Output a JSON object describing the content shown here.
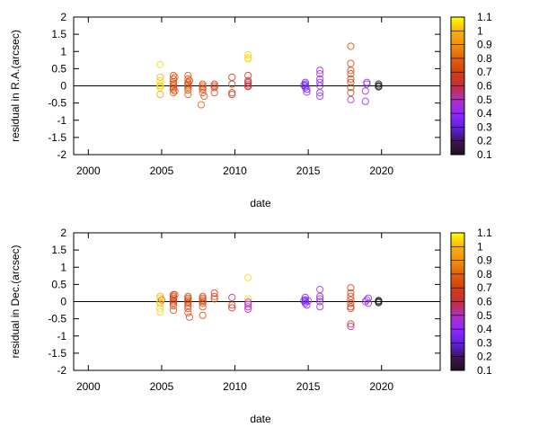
{
  "chart_data": [
    {
      "type": "scatter",
      "xlabel": "date",
      "ylabel": "residual in R.A.(arcsec)",
      "xlim": [
        1999,
        2024
      ],
      "ylim": [
        -2,
        2
      ],
      "xticks": [
        2000,
        2005,
        2010,
        2015,
        2020
      ],
      "yticks": [
        -2,
        -1.5,
        -1,
        -0.5,
        0,
        0.5,
        1,
        1.5,
        2
      ],
      "colorbar": {
        "range": [
          0.1,
          1.1
        ],
        "ticks": [
          "0.1",
          "0.2",
          "0.3",
          "0.4",
          "0.5",
          "0.6",
          "0.7",
          "0.8",
          "0.9",
          "1",
          "1.1"
        ]
      },
      "points_format": [
        "year",
        "residual",
        "color_value"
      ],
      "points": [
        [
          2004.9,
          0.62,
          1.05
        ],
        [
          2004.9,
          0.25,
          1.0
        ],
        [
          2004.9,
          0.15,
          1.05
        ],
        [
          2004.9,
          0.05,
          1.1
        ],
        [
          2004.9,
          0.0,
          1.0
        ],
        [
          2004.9,
          -0.05,
          1.05
        ],
        [
          2004.9,
          -0.25,
          0.95
        ],
        [
          2005.8,
          0.3,
          0.78
        ],
        [
          2005.8,
          0.2,
          0.75
        ],
        [
          2005.8,
          0.12,
          0.75
        ],
        [
          2005.8,
          0.05,
          0.75
        ],
        [
          2005.8,
          0.0,
          0.75
        ],
        [
          2005.8,
          -0.05,
          0.75
        ],
        [
          2005.8,
          -0.1,
          0.75
        ],
        [
          2005.8,
          -0.2,
          0.78
        ],
        [
          2005.9,
          0.25,
          0.8
        ],
        [
          2005.9,
          -0.15,
          0.75
        ],
        [
          2006.8,
          0.3,
          0.78
        ],
        [
          2006.8,
          0.2,
          0.75
        ],
        [
          2006.8,
          0.1,
          0.75
        ],
        [
          2006.8,
          0.05,
          0.75
        ],
        [
          2006.8,
          0.0,
          0.75
        ],
        [
          2006.8,
          -0.05,
          0.75
        ],
        [
          2006.8,
          -0.12,
          0.75
        ],
        [
          2006.8,
          -0.25,
          0.78
        ],
        [
          2006.9,
          0.15,
          0.75
        ],
        [
          2007.8,
          0.05,
          0.75
        ],
        [
          2007.8,
          0.0,
          0.75
        ],
        [
          2007.8,
          -0.05,
          0.75
        ],
        [
          2007.8,
          -0.1,
          0.75
        ],
        [
          2007.8,
          -0.2,
          0.78
        ],
        [
          2007.9,
          -0.3,
          0.78
        ],
        [
          2007.7,
          -0.55,
          0.78
        ],
        [
          2008.6,
          0.05,
          0.72
        ],
        [
          2008.6,
          0.0,
          0.7
        ],
        [
          2008.6,
          -0.05,
          0.72
        ],
        [
          2008.6,
          -0.2,
          0.72
        ],
        [
          2009.8,
          0.25,
          0.68
        ],
        [
          2009.8,
          0.05,
          0.68
        ],
        [
          2009.8,
          -0.2,
          0.68
        ],
        [
          2009.8,
          -0.25,
          0.68
        ],
        [
          2010.9,
          0.3,
          0.65
        ],
        [
          2010.9,
          0.15,
          0.6
        ],
        [
          2010.9,
          0.1,
          0.6
        ],
        [
          2010.9,
          0.05,
          0.6
        ],
        [
          2010.9,
          0.0,
          0.6
        ],
        [
          2010.9,
          -0.02,
          0.62
        ],
        [
          2010.9,
          0.9,
          1.05
        ],
        [
          2010.9,
          0.82,
          1.05
        ],
        [
          2010.9,
          0.78,
          1.05
        ],
        [
          2014.8,
          0.1,
          0.35
        ],
        [
          2014.8,
          0.05,
          0.35
        ],
        [
          2014.8,
          0.0,
          0.35
        ],
        [
          2014.8,
          -0.05,
          0.35
        ],
        [
          2014.9,
          -0.1,
          0.35
        ],
        [
          2014.9,
          -0.18,
          0.38
        ],
        [
          2014.7,
          0.02,
          0.35
        ],
        [
          2015.8,
          0.45,
          0.42
        ],
        [
          2015.8,
          0.35,
          0.42
        ],
        [
          2015.8,
          0.2,
          0.42
        ],
        [
          2015.8,
          0.1,
          0.42
        ],
        [
          2015.8,
          0.0,
          0.42
        ],
        [
          2015.8,
          -0.2,
          0.42
        ],
        [
          2015.8,
          -0.3,
          0.42
        ],
        [
          2017.9,
          1.15,
          0.72
        ],
        [
          2017.9,
          0.65,
          0.72
        ],
        [
          2017.9,
          0.45,
          0.72
        ],
        [
          2017.9,
          0.35,
          0.7
        ],
        [
          2017.9,
          0.2,
          0.7
        ],
        [
          2017.9,
          0.1,
          0.68
        ],
        [
          2017.9,
          -0.05,
          0.7
        ],
        [
          2017.9,
          -0.2,
          0.7
        ],
        [
          2017.9,
          -0.4,
          0.5
        ],
        [
          2019.0,
          0.1,
          0.42
        ],
        [
          2019.0,
          0.05,
          0.42
        ],
        [
          2018.9,
          -0.15,
          0.42
        ],
        [
          2018.9,
          -0.45,
          0.42
        ],
        [
          2019.8,
          0.05,
          0.1
        ],
        [
          2019.8,
          0.0,
          0.1
        ],
        [
          2019.8,
          -0.03,
          0.12
        ]
      ]
    },
    {
      "type": "scatter",
      "xlabel": "date",
      "ylabel": "residual in Dec.(arcsec)",
      "xlim": [
        1999,
        2024
      ],
      "ylim": [
        -2,
        2
      ],
      "xticks": [
        2000,
        2005,
        2010,
        2015,
        2020
      ],
      "yticks": [
        -2,
        -1.5,
        -1,
        -0.5,
        0,
        0.5,
        1,
        1.5,
        2
      ],
      "colorbar": {
        "range": [
          0.1,
          1.1
        ],
        "ticks": [
          "0.1",
          "0.2",
          "0.3",
          "0.4",
          "0.5",
          "0.6",
          "0.7",
          "0.8",
          "0.9",
          "1",
          "1.1"
        ]
      },
      "points_format": [
        "year",
        "residual",
        "color_value"
      ],
      "points": [
        [
          2004.9,
          0.15,
          1.0
        ],
        [
          2004.9,
          0.1,
          1.05
        ],
        [
          2004.9,
          0.0,
          1.05
        ],
        [
          2004.9,
          -0.05,
          1.0
        ],
        [
          2004.9,
          -0.2,
          1.05
        ],
        [
          2004.9,
          -0.3,
          1.05
        ],
        [
          2005.0,
          0.05,
          0.8
        ],
        [
          2005.8,
          0.2,
          0.72
        ],
        [
          2005.8,
          0.15,
          0.72
        ],
        [
          2005.8,
          0.1,
          0.72
        ],
        [
          2005.8,
          0.05,
          0.72
        ],
        [
          2005.8,
          0.0,
          0.72
        ],
        [
          2005.8,
          -0.05,
          0.72
        ],
        [
          2005.8,
          -0.12,
          0.72
        ],
        [
          2005.8,
          -0.25,
          0.75
        ],
        [
          2005.9,
          0.2,
          0.75
        ],
        [
          2006.8,
          0.15,
          0.72
        ],
        [
          2006.8,
          0.1,
          0.72
        ],
        [
          2006.8,
          0.05,
          0.72
        ],
        [
          2006.8,
          0.0,
          0.72
        ],
        [
          2006.8,
          -0.05,
          0.72
        ],
        [
          2006.8,
          -0.12,
          0.72
        ],
        [
          2006.8,
          -0.2,
          0.72
        ],
        [
          2006.8,
          -0.32,
          0.75
        ],
        [
          2006.9,
          -0.45,
          0.75
        ],
        [
          2007.8,
          0.15,
          0.72
        ],
        [
          2007.8,
          0.1,
          0.72
        ],
        [
          2007.8,
          0.05,
          0.72
        ],
        [
          2007.8,
          0.0,
          0.72
        ],
        [
          2007.8,
          -0.05,
          0.72
        ],
        [
          2007.8,
          -0.15,
          0.75
        ],
        [
          2007.8,
          -0.4,
          0.75
        ],
        [
          2008.6,
          0.25,
          0.72
        ],
        [
          2008.6,
          0.15,
          0.72
        ],
        [
          2008.6,
          0.08,
          0.72
        ],
        [
          2009.8,
          0.12,
          0.55
        ],
        [
          2009.8,
          -0.1,
          0.68
        ],
        [
          2009.8,
          -0.18,
          0.68
        ],
        [
          2010.9,
          0.7,
          1.05
        ],
        [
          2010.9,
          0.08,
          1.05
        ],
        [
          2010.9,
          -0.02,
          0.5
        ],
        [
          2010.9,
          -0.08,
          0.5
        ],
        [
          2010.9,
          -0.15,
          0.5
        ],
        [
          2010.9,
          -0.22,
          0.5
        ],
        [
          2014.8,
          0.12,
          0.35
        ],
        [
          2014.8,
          0.05,
          0.35
        ],
        [
          2014.8,
          0.0,
          0.35
        ],
        [
          2014.8,
          -0.05,
          0.35
        ],
        [
          2014.9,
          -0.1,
          0.38
        ],
        [
          2014.7,
          0.03,
          0.35
        ],
        [
          2015.0,
          0.02,
          0.4
        ],
        [
          2015.8,
          0.35,
          0.42
        ],
        [
          2015.8,
          0.15,
          0.42
        ],
        [
          2015.8,
          0.08,
          0.42
        ],
        [
          2015.8,
          0.0,
          0.42
        ],
        [
          2015.8,
          -0.15,
          0.42
        ],
        [
          2017.9,
          0.4,
          0.72
        ],
        [
          2017.9,
          0.25,
          0.72
        ],
        [
          2017.9,
          0.15,
          0.72
        ],
        [
          2017.9,
          0.05,
          0.7
        ],
        [
          2017.9,
          -0.05,
          0.7
        ],
        [
          2017.9,
          -0.15,
          0.7
        ],
        [
          2017.9,
          -0.2,
          0.7
        ],
        [
          2017.9,
          -0.65,
          0.72
        ],
        [
          2017.9,
          -0.72,
          0.5
        ],
        [
          2019.0,
          0.05,
          0.42
        ],
        [
          2019.1,
          0.1,
          0.42
        ],
        [
          2019.1,
          -0.05,
          0.42
        ],
        [
          2018.9,
          0.0,
          0.42
        ],
        [
          2019.8,
          0.03,
          0.1
        ],
        [
          2019.8,
          0.0,
          0.1
        ],
        [
          2019.8,
          -0.03,
          0.12
        ]
      ]
    }
  ]
}
